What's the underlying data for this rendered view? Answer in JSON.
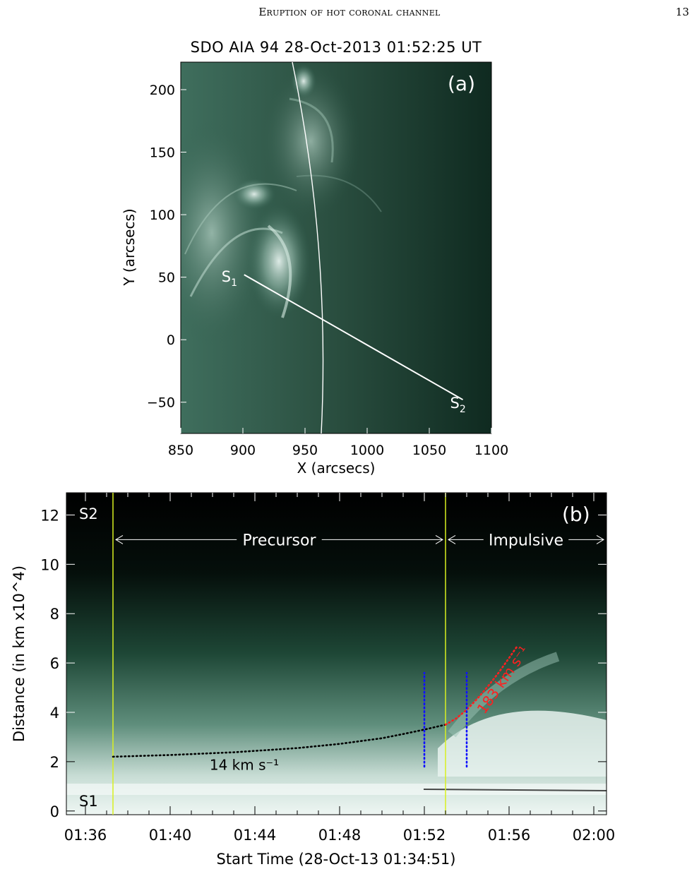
{
  "page": {
    "running_title": "Eruption of hot coronal channel",
    "page_number": "13"
  },
  "chart_data": [
    {
      "panel": "(a)",
      "type": "image",
      "title": "SDO AIA 94 28-Oct-2013 01:52:25 UT",
      "xlabel": "X (arcsecs)",
      "ylabel": "Y (arcsecs)",
      "xlim": [
        850,
        1100
      ],
      "ylim": [
        -75,
        222
      ],
      "xticks": [
        "850",
        "900",
        "950",
        "1000",
        "1050",
        "1100"
      ],
      "yticks": [
        "-50",
        "0",
        "50",
        "100",
        "150",
        "200"
      ],
      "slit": {
        "start_label": "S1",
        "end_label": "S2",
        "start": [
          901,
          52
        ],
        "end": [
          1077,
          -48
        ]
      },
      "limb_label": ""
    },
    {
      "panel": "(b)",
      "type": "line",
      "title": "",
      "xlabel": "Start Time (28-Oct-13 01:34:51)",
      "ylabel": "Distance (in km x10^4)",
      "xlim_min": [
        95.1,
        120.6
      ],
      "ylim": [
        -0.15,
        12.9
      ],
      "xticks": [
        {
          "min": 96,
          "label": "01:36"
        },
        {
          "min": 100,
          "label": "01:40"
        },
        {
          "min": 104,
          "label": "01:44"
        },
        {
          "min": 108,
          "label": "01:48"
        },
        {
          "min": 112,
          "label": "01:52"
        },
        {
          "min": 116,
          "label": "01:56"
        },
        {
          "min": 120,
          "label": "02:00"
        }
      ],
      "yticks": [
        0,
        2,
        4,
        6,
        8,
        10,
        12
      ],
      "phases": [
        {
          "label": "Precursor",
          "from_min": 97.3,
          "to_min": 113.0
        },
        {
          "label": "Impulsive",
          "from_min": 113.0,
          "to_min": 120.6
        }
      ],
      "phase_lines_min": [
        97.3,
        113.0
      ],
      "fits": [
        {
          "label": "14 km s⁻¹",
          "color": "#000000",
          "x_min": [
            97.3,
            100,
            103,
            106,
            108,
            110,
            111,
            112,
            113.0
          ],
          "y": [
            2.2,
            2.27,
            2.38,
            2.55,
            2.72,
            2.95,
            3.12,
            3.3,
            3.5
          ]
        },
        {
          "label": "183 km s⁻¹",
          "color": "#ff2020",
          "x_min": [
            113.0,
            113.5,
            114.0,
            114.5,
            115.0,
            115.5,
            116.0,
            116.4
          ],
          "y": [
            3.5,
            3.75,
            4.1,
            4.55,
            5.05,
            5.6,
            6.2,
            6.7
          ]
        }
      ],
      "markers_min": [
        {
          "x_min": 112.0,
          "y": [
            1.8,
            5.6
          ],
          "color": "#1010ff"
        },
        {
          "x_min": 114.0,
          "y": [
            1.8,
            5.6
          ],
          "color": "#1010ff"
        }
      ],
      "corner_labels": {
        "top": "S2",
        "bottom": "S1"
      },
      "panel_label": "(b)"
    }
  ]
}
